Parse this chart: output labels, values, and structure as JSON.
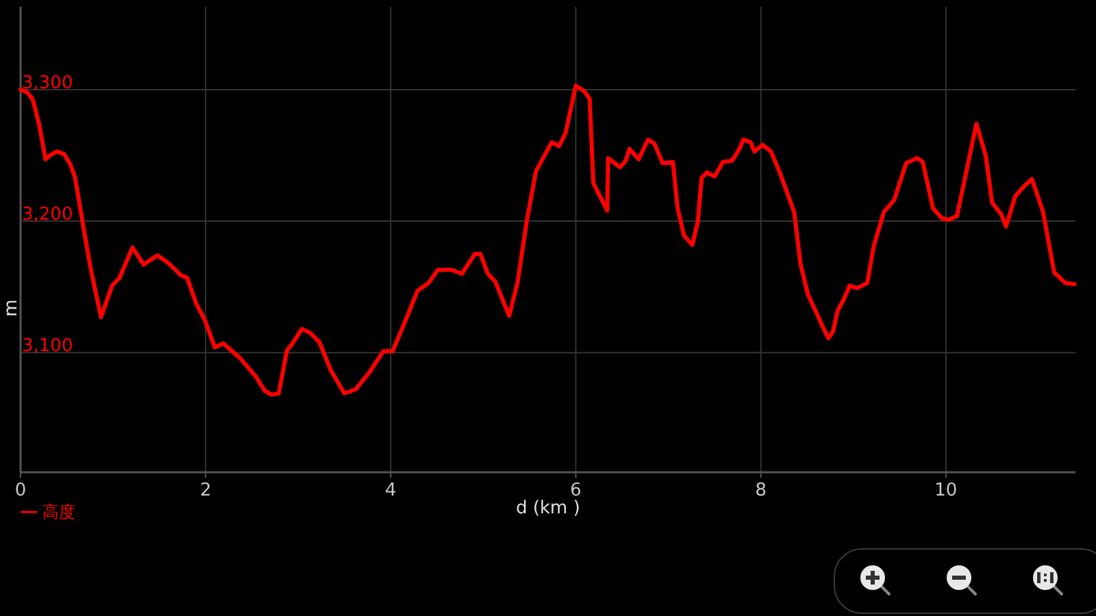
{
  "chart_data": {
    "type": "line",
    "xlabel": "d (km )",
    "ylabel": "m",
    "xlim": [
      0,
      11.4
    ],
    "ylim": [
      3009,
      3363
    ],
    "xticks": [
      0,
      2,
      4,
      6,
      8,
      10
    ],
    "yticks": [
      {
        "value": 3100,
        "label": "3,100"
      },
      {
        "value": 3200,
        "label": "3,200"
      },
      {
        "value": 3300,
        "label": "3,300"
      }
    ],
    "grid": true,
    "legend": "bottom left",
    "series": [
      {
        "name": "高度",
        "color": "#ff0000",
        "x": [
          0,
          0.07,
          0.13,
          0.2,
          0.27,
          0.32,
          0.39,
          0.47,
          0.54,
          0.59,
          0.69,
          0.76,
          0.87,
          0.99,
          1.07,
          1.21,
          1.33,
          1.48,
          1.6,
          1.73,
          1.8,
          1.9,
          1.99,
          2.1,
          2.19,
          2.37,
          2.54,
          2.64,
          2.71,
          2.79,
          2.88,
          2.93,
          3.04,
          3.13,
          3.23,
          3.35,
          3.5,
          3.62,
          3.77,
          3.92,
          4.02,
          4.14,
          4.29,
          4.41,
          4.51,
          4.66,
          4.77,
          4.91,
          4.97,
          5.05,
          5.13,
          5.28,
          5.37,
          5.47,
          5.57,
          5.74,
          5.82,
          5.89,
          6.0,
          6.09,
          6.15,
          6.19,
          6.34,
          6.35,
          6.48,
          6.54,
          6.58,
          6.68,
          6.78,
          6.85,
          6.94,
          7.05,
          7.1,
          7.17,
          7.26,
          7.32,
          7.36,
          7.42,
          7.5,
          7.59,
          7.69,
          7.77,
          7.81,
          7.89,
          7.93,
          8.02,
          8.11,
          8.21,
          8.36,
          8.43,
          8.51,
          8.61,
          8.68,
          8.73,
          8.78,
          8.83,
          8.9,
          8.96,
          9.04,
          9.15,
          9.22,
          9.33,
          9.44,
          9.57,
          9.69,
          9.75,
          9.86,
          9.96,
          10.03,
          10.12,
          10.21,
          10.33,
          10.43,
          10.5,
          10.6,
          10.65,
          10.75,
          10.85,
          10.93,
          11.05,
          11.17,
          11.29,
          11.39
        ],
        "values": [
          3300,
          3298,
          3293,
          3274,
          3247,
          3250,
          3253,
          3251,
          3243,
          3233,
          3191,
          3163,
          3127,
          3151,
          3157,
          3180,
          3167,
          3174,
          3168,
          3159,
          3157,
          3137,
          3125,
          3104,
          3107,
          3096,
          3082,
          3071,
          3068,
          3069,
          3102,
          3106,
          3118,
          3115,
          3108,
          3087,
          3069,
          3072,
          3085,
          3101,
          3101,
          3121,
          3147,
          3153,
          3163,
          3163,
          3160,
          3175,
          3175,
          3160,
          3154,
          3128,
          3153,
          3200,
          3238,
          3260,
          3257,
          3267,
          3303,
          3299,
          3293,
          3229,
          3208,
          3248,
          3241,
          3246,
          3255,
          3247,
          3262,
          3259,
          3244,
          3245,
          3210,
          3189,
          3182,
          3200,
          3233,
          3237,
          3234,
          3245,
          3246,
          3255,
          3262,
          3260,
          3253,
          3258,
          3253,
          3236,
          3207,
          3167,
          3144,
          3129,
          3118,
          3111,
          3116,
          3132,
          3141,
          3151,
          3149,
          3153,
          3181,
          3207,
          3216,
          3244,
          3248,
          3245,
          3210,
          3202,
          3201,
          3204,
          3234,
          3274,
          3250,
          3214,
          3205,
          3196,
          3219,
          3227,
          3232,
          3207,
          3161,
          3153,
          3152
        ]
      }
    ]
  }
}
